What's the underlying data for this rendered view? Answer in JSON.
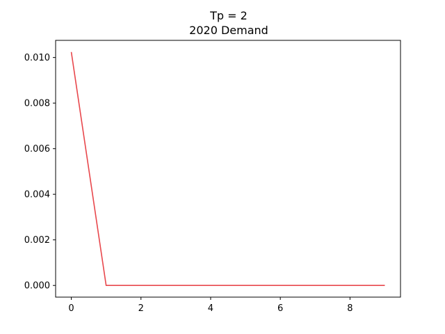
{
  "chart_data": {
    "type": "line",
    "title": "Tp = 2",
    "subtitle": "2020 Demand",
    "xlabel": "",
    "ylabel": "",
    "xlim": [
      -0.45,
      9.45
    ],
    "ylim": [
      -0.000512,
      0.010752
    ],
    "x_ticks": [
      "0",
      "2",
      "4",
      "6",
      "8"
    ],
    "y_ticks": [
      "0.000",
      "0.002",
      "0.004",
      "0.006",
      "0.008",
      "0.010"
    ],
    "grid": false,
    "series": [
      {
        "color": "#e8474c",
        "x": [
          0,
          1,
          2,
          3,
          4,
          5,
          6,
          7,
          8,
          9
        ],
        "y": [
          0.01024,
          0.0,
          0.0,
          0.0,
          0.0,
          0.0,
          0.0,
          0.0,
          0.0,
          0.0
        ]
      }
    ]
  }
}
